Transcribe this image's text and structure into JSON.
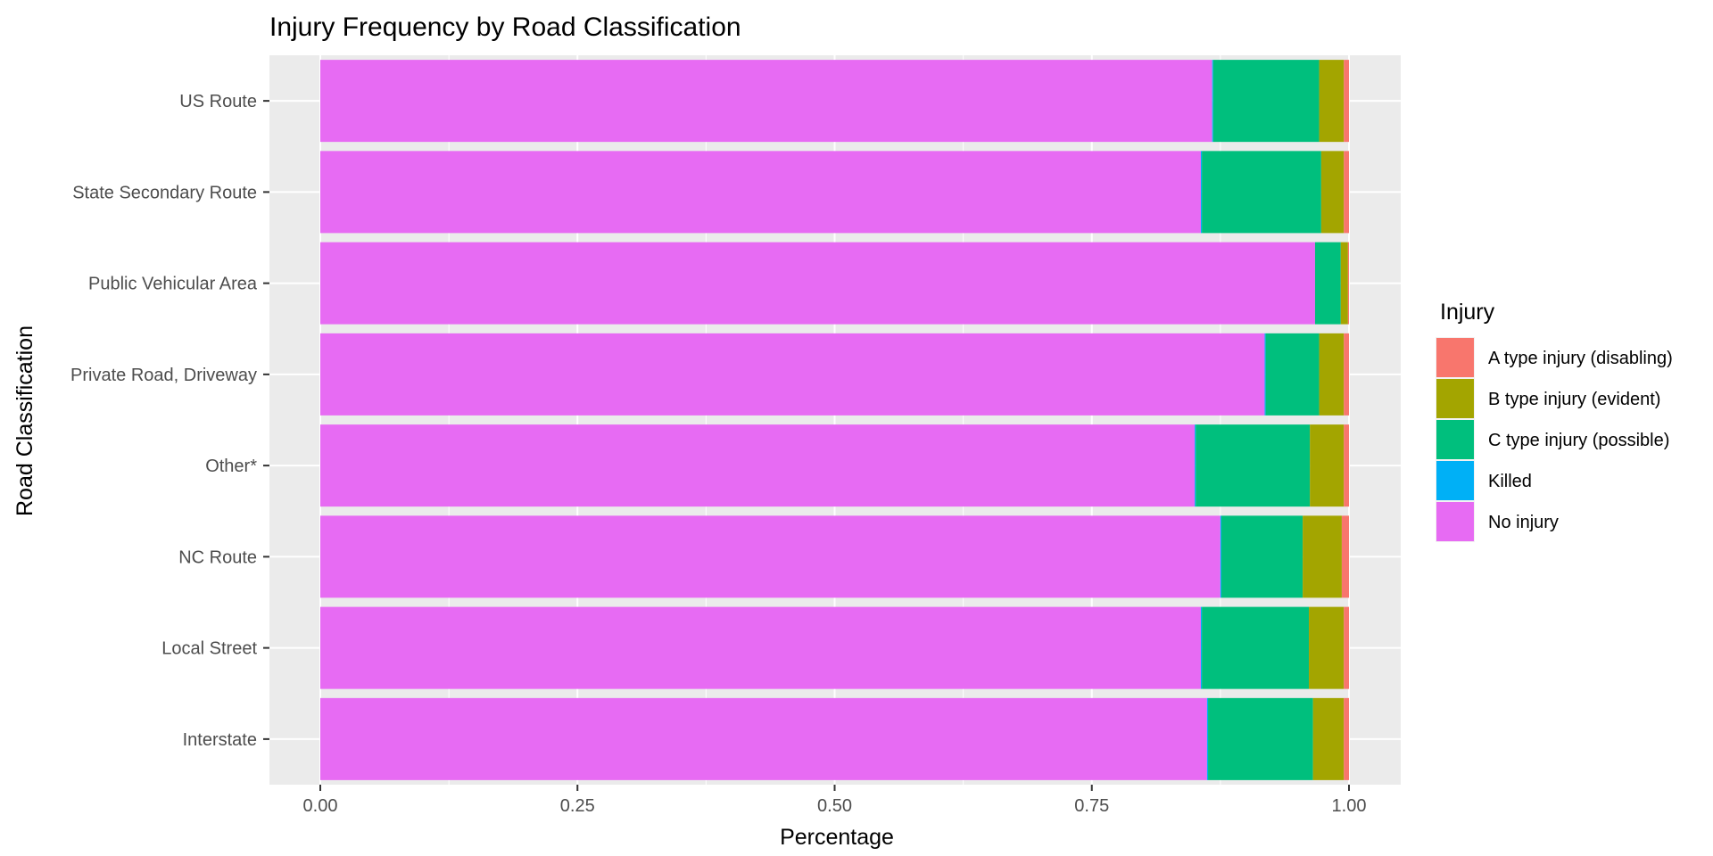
{
  "chart_data": {
    "type": "bar",
    "orientation": "horizontal",
    "stacked": "fill",
    "title": "Injury Frequency by Road Classification",
    "xlabel": "Percentage",
    "ylabel": "Road Classification",
    "xlim": [
      0,
      1
    ],
    "xticks": [
      "0.00",
      "0.25",
      "0.50",
      "0.75",
      "1.00"
    ],
    "grid": true,
    "legend": {
      "title": "Injury",
      "position": "right"
    },
    "categories": [
      "US Route",
      "State Secondary Route",
      "Public Vehicular Area",
      "Private Road, Driveway",
      "Other*",
      "NC Route",
      "Local Street",
      "Interstate"
    ],
    "series": [
      {
        "name": "No injury",
        "color": "#E76BF3",
        "values": [
          0.867,
          0.856,
          0.967,
          0.918,
          0.85,
          0.875,
          0.856,
          0.862
        ]
      },
      {
        "name": "Killed",
        "color": "#00B0F6",
        "values": [
          0.001,
          0.001,
          0.0,
          0.001,
          0.001,
          0.001,
          0.001,
          0.001
        ]
      },
      {
        "name": "C type injury (possible)",
        "color": "#00BF7D",
        "values": [
          0.103,
          0.116,
          0.025,
          0.052,
          0.111,
          0.079,
          0.104,
          0.102
        ]
      },
      {
        "name": "B type injury (evident)",
        "color": "#A3A500",
        "values": [
          0.024,
          0.022,
          0.007,
          0.024,
          0.033,
          0.038,
          0.034,
          0.03
        ]
      },
      {
        "name": "A type injury (disabling)",
        "color": "#F8766D",
        "values": [
          0.005,
          0.005,
          0.001,
          0.005,
          0.005,
          0.007,
          0.005,
          0.005
        ]
      }
    ],
    "legend_order": [
      "A type injury (disabling)",
      "B type injury (evident)",
      "C type injury (possible)",
      "Killed",
      "No injury"
    ]
  }
}
